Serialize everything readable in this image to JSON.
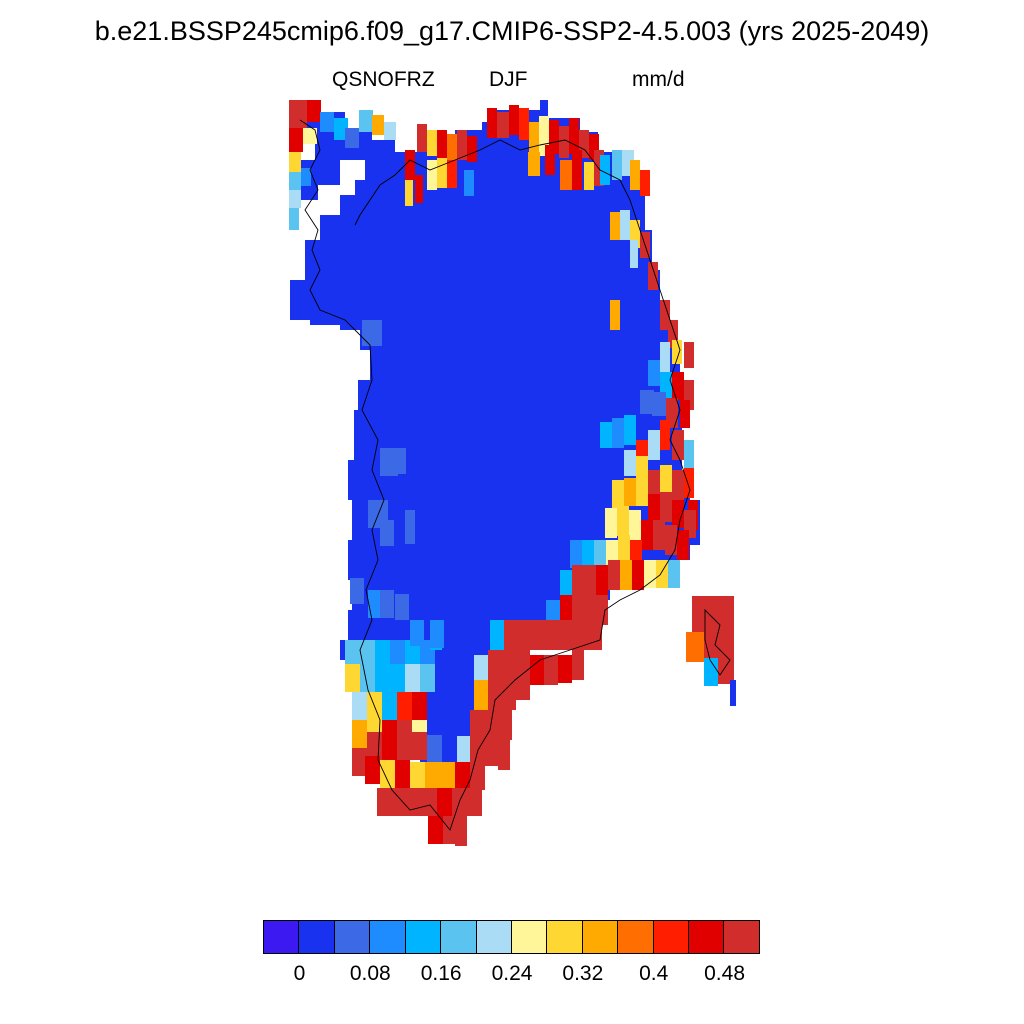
{
  "title": "b.e21.BSSP245cmip6.f09_g17.CMIP6-SSP2-4.5.003 (yrs 2025-2049)",
  "variable": "QSNOFRZ",
  "season": "DJF",
  "units": "mm/d",
  "colorbar": {
    "colors": [
      "#3c19f0",
      "#1932f0",
      "#3c69e6",
      "#1e8cff",
      "#00b4ff",
      "#5ac3f0",
      "#aadcf5",
      "#fff599",
      "#ffd732",
      "#ffaa00",
      "#ff6e00",
      "#ff1e00",
      "#e10000",
      "#d22d2d"
    ],
    "tick_labels": [
      "0",
      "0.08",
      "0.16",
      "0.24",
      "0.32",
      "0.4",
      "0.48"
    ]
  },
  "chart_data": {
    "type": "heatmap",
    "title": "b.e21.BSSP245cmip6.f09_g17.CMIP6-SSP2-4.5.003 (yrs 2025-2049)",
    "variable": "QSNOFRZ",
    "season": "DJF",
    "units": "mm/d",
    "levels": [
      0,
      0.04,
      0.08,
      0.12,
      0.16,
      0.2,
      0.24,
      0.28,
      0.32,
      0.36,
      0.4,
      0.44,
      0.48
    ],
    "region": "Greenland",
    "interior_value": "< 0.04",
    "coastal_values": "0.24 - >0.48"
  }
}
